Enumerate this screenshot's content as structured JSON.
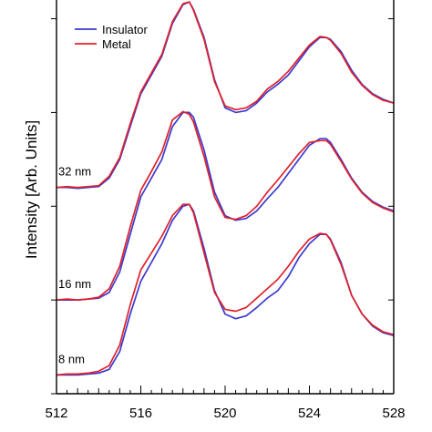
{
  "chart_data": {
    "type": "line",
    "title": "",
    "xlabel": "",
    "ylabel": "Intensity [Arb. Units]",
    "xlim": [
      512,
      528
    ],
    "ylim": [
      0,
      4.2
    ],
    "x_ticks": [
      512,
      516,
      520,
      524,
      528
    ],
    "y_tick_labels_visible": false,
    "grid": false,
    "legend": {
      "placement": "top-left",
      "entries": [
        "Insulator",
        "Metal"
      ]
    },
    "colors": {
      "Insulator": "#3a3ad0",
      "Metal": "#e0202a"
    },
    "traces": [
      {
        "label": "32 nm",
        "series": [
          {
            "name": "Insulator",
            "x": [
              512,
              512.5,
              513,
              513.5,
              514,
              514.5,
              515,
              515.5,
              516,
              516.5,
              517,
              517.5,
              518,
              518.3,
              518.5,
              519,
              519.5,
              520,
              520.5,
              521,
              521.5,
              522,
              522.5,
              523,
              523.5,
              524,
              524.5,
              524.8,
              525,
              525.5,
              526,
              526.5,
              527,
              527.5,
              528
            ],
            "y": [
              2.2,
              2.2,
              2.19,
              2.2,
              2.21,
              2.3,
              2.5,
              2.85,
              3.2,
              3.4,
              3.6,
              3.95,
              4.15,
              4.18,
              4.1,
              3.8,
              3.35,
              3.05,
              3.0,
              3.02,
              3.1,
              3.22,
              3.3,
              3.4,
              3.55,
              3.7,
              3.8,
              3.8,
              3.78,
              3.65,
              3.45,
              3.3,
              3.2,
              3.14,
              3.1
            ]
          },
          {
            "name": "Metal",
            "x": [
              512,
              512.5,
              513,
              513.5,
              514,
              514.5,
              515,
              515.5,
              516,
              516.5,
              517,
              517.5,
              518,
              518.3,
              518.5,
              519,
              519.5,
              520,
              520.5,
              521,
              521.5,
              522,
              522.5,
              523,
              523.5,
              524,
              524.5,
              524.8,
              525,
              525.5,
              526,
              526.5,
              527,
              527.5,
              528
            ],
            "y": [
              2.2,
              2.21,
              2.2,
              2.21,
              2.22,
              2.32,
              2.52,
              2.88,
              3.22,
              3.42,
              3.62,
              3.97,
              4.16,
              4.18,
              4.09,
              3.78,
              3.33,
              3.07,
              3.03,
              3.05,
              3.12,
              3.25,
              3.33,
              3.44,
              3.58,
              3.72,
              3.81,
              3.8,
              3.77,
              3.63,
              3.43,
              3.29,
              3.19,
              3.13,
              3.1
            ]
          }
        ]
      },
      {
        "label": "16 nm",
        "series": [
          {
            "name": "Insulator",
            "x": [
              512,
              512.5,
              513,
              513.5,
              514,
              514.5,
              515,
              515.5,
              516,
              516.5,
              517,
              517.5,
              518,
              518.3,
              518.5,
              519,
              519.5,
              520,
              520.5,
              521,
              521.5,
              522,
              522.5,
              523,
              523.5,
              524,
              524.5,
              524.8,
              525,
              525.5,
              526,
              526.5,
              527,
              527.5,
              528
            ],
            "y": [
              1.0,
              1.0,
              1.0,
              1.01,
              1.02,
              1.08,
              1.3,
              1.7,
              2.1,
              2.3,
              2.5,
              2.85,
              3.0,
              3.0,
              2.95,
              2.6,
              2.15,
              1.9,
              1.85,
              1.87,
              1.95,
              2.08,
              2.2,
              2.35,
              2.5,
              2.65,
              2.72,
              2.72,
              2.68,
              2.5,
              2.3,
              2.15,
              2.05,
              1.99,
              1.95
            ]
          },
          {
            "name": "Metal",
            "x": [
              512,
              512.5,
              513,
              513.5,
              514,
              514.5,
              515,
              515.5,
              516,
              516.5,
              517,
              517.5,
              518,
              518.3,
              518.5,
              519,
              519.5,
              520,
              520.5,
              521,
              521.5,
              522,
              522.5,
              523,
              523.5,
              524,
              524.5,
              524.8,
              525,
              525.5,
              526,
              526.5,
              527,
              527.5,
              528
            ],
            "y": [
              1.0,
              1.01,
              1.0,
              1.01,
              1.03,
              1.12,
              1.36,
              1.78,
              2.17,
              2.37,
              2.58,
              2.92,
              3.01,
              2.98,
              2.9,
              2.53,
              2.1,
              1.88,
              1.86,
              1.9,
              2.0,
              2.15,
              2.28,
              2.42,
              2.56,
              2.68,
              2.7,
              2.7,
              2.66,
              2.48,
              2.29,
              2.14,
              2.04,
              1.98,
              1.94
            ]
          }
        ]
      },
      {
        "label": "8 nm",
        "series": [
          {
            "name": "Insulator",
            "x": [
              512,
              512.5,
              513,
              513.5,
              514,
              514.5,
              515,
              515.5,
              516,
              516.5,
              517,
              517.5,
              518,
              518.3,
              518.5,
              519,
              519.5,
              520,
              520.5,
              521,
              521.5,
              522,
              522.5,
              523,
              523.5,
              524,
              524.5,
              524.8,
              525,
              525.5,
              526,
              526.5,
              527,
              527.5,
              528
            ],
            "y": [
              0.2,
              0.2,
              0.2,
              0.21,
              0.22,
              0.26,
              0.45,
              0.85,
              1.2,
              1.4,
              1.6,
              1.85,
              2.0,
              2.02,
              1.95,
              1.55,
              1.1,
              0.85,
              0.8,
              0.83,
              0.92,
              1.02,
              1.1,
              1.25,
              1.45,
              1.6,
              1.7,
              1.7,
              1.65,
              1.4,
              1.05,
              0.85,
              0.72,
              0.65,
              0.62
            ]
          },
          {
            "name": "Metal",
            "x": [
              512,
              512.5,
              513,
              513.5,
              514,
              514.5,
              515,
              515.5,
              516,
              516.5,
              517,
              517.5,
              518,
              518.3,
              518.5,
              519,
              519.5,
              520,
              520.5,
              521,
              521.5,
              522,
              522.5,
              523,
              523.5,
              524,
              524.5,
              524.8,
              525,
              525.5,
              526,
              526.5,
              527,
              527.5,
              528
            ],
            "y": [
              0.2,
              0.21,
              0.21,
              0.22,
              0.24,
              0.3,
              0.52,
              0.95,
              1.32,
              1.5,
              1.68,
              1.9,
              2.02,
              2.02,
              1.93,
              1.5,
              1.08,
              0.9,
              0.88,
              0.92,
              1.02,
              1.12,
              1.22,
              1.36,
              1.52,
              1.65,
              1.71,
              1.7,
              1.64,
              1.38,
              1.05,
              0.85,
              0.73,
              0.66,
              0.63
            ]
          }
        ]
      }
    ]
  }
}
